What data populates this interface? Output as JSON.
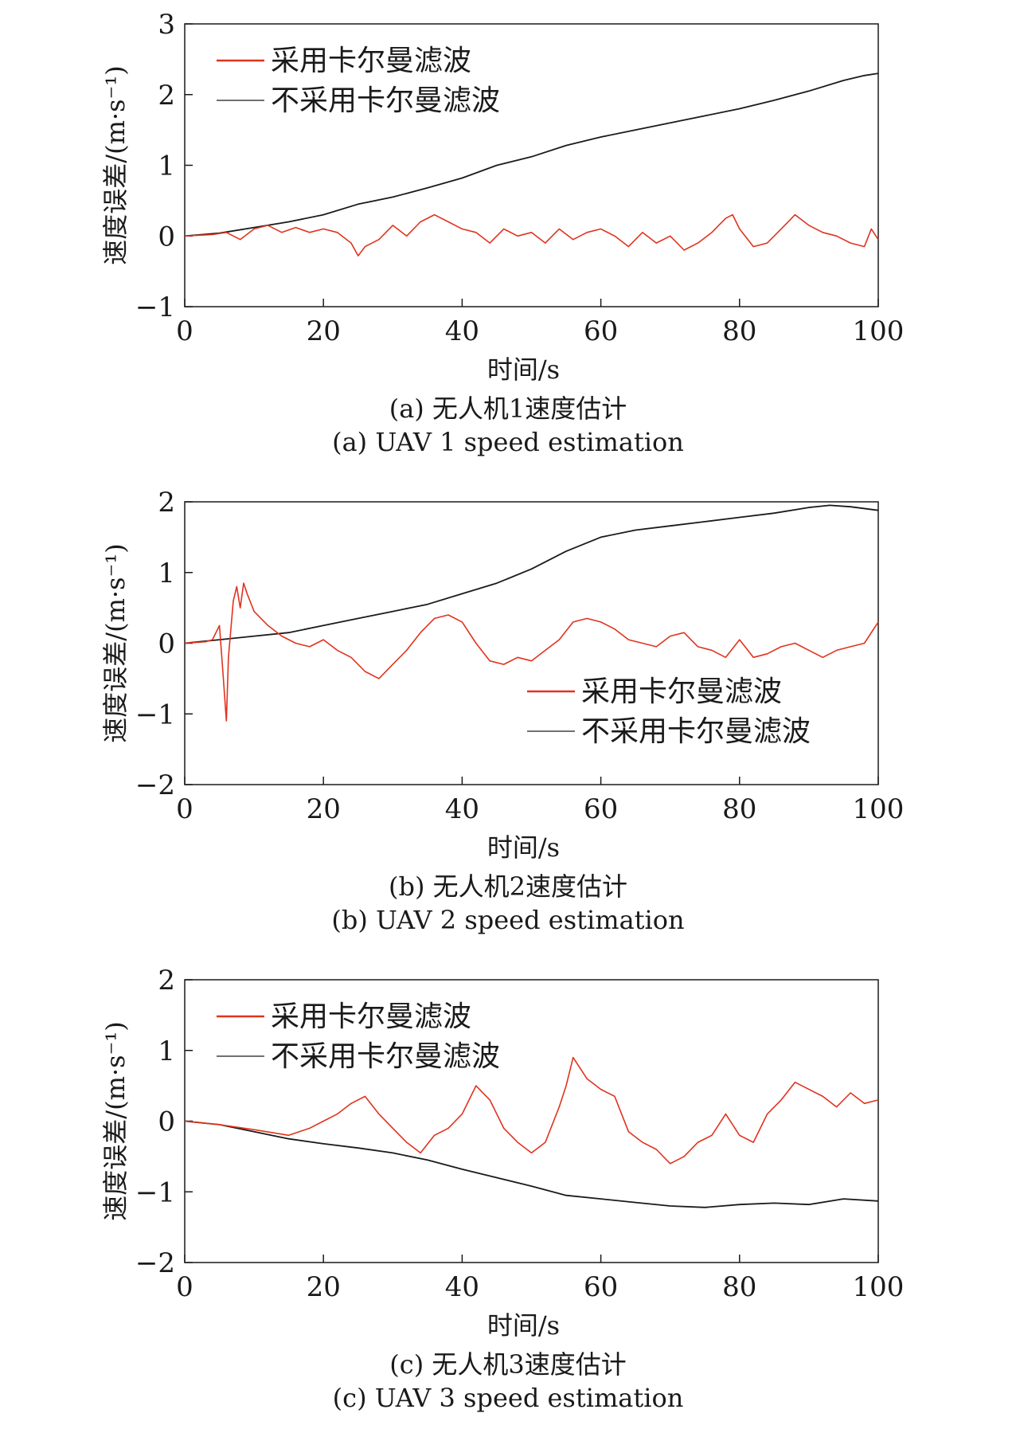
{
  "chart_data": [
    {
      "type": "line",
      "xlabel": "时间/s",
      "ylabel": "速度误差/(m·s⁻¹)",
      "xlim": [
        0,
        100
      ],
      "ylim": [
        -1,
        3
      ],
      "xticks": [
        "0",
        "20",
        "40",
        "60",
        "80",
        "100"
      ],
      "yticks": [
        "−1",
        "0",
        "1",
        "2",
        "3"
      ],
      "legend_position": "top-left",
      "caption_cn": "(a) 无人机1速度估计",
      "caption_en": "(a) UAV 1 speed estimation",
      "series": [
        {
          "name": "采用卡尔曼滤波",
          "color": "#e0331e",
          "x": [
            0,
            4,
            6,
            8,
            10,
            12,
            14,
            16,
            18,
            20,
            22,
            24,
            25,
            26,
            28,
            30,
            32,
            34,
            36,
            38,
            40,
            42,
            44,
            46,
            48,
            50,
            52,
            54,
            56,
            58,
            60,
            62,
            64,
            66,
            68,
            70,
            72,
            74,
            76,
            78,
            79,
            80,
            82,
            84,
            86,
            88,
            90,
            92,
            94,
            96,
            98,
            99,
            100
          ],
          "y": [
            0,
            0.02,
            0.05,
            -0.05,
            0.1,
            0.15,
            0.05,
            0.12,
            0.05,
            0.1,
            0.05,
            -0.1,
            -0.28,
            -0.15,
            -0.05,
            0.15,
            0.0,
            0.2,
            0.3,
            0.2,
            0.1,
            0.05,
            -0.1,
            0.1,
            0.0,
            0.05,
            -0.1,
            0.1,
            -0.05,
            0.05,
            0.1,
            0.0,
            -0.15,
            0.05,
            -0.1,
            0.0,
            -0.2,
            -0.1,
            0.05,
            0.25,
            0.3,
            0.1,
            -0.15,
            -0.1,
            0.1,
            0.3,
            0.15,
            0.05,
            0.0,
            -0.1,
            -0.15,
            0.1,
            -0.05
          ]
        },
        {
          "name": "不采用卡尔曼滤波",
          "color": "#1a1a1a",
          "x": [
            0,
            5,
            10,
            15,
            20,
            25,
            30,
            35,
            40,
            45,
            50,
            55,
            60,
            65,
            70,
            75,
            80,
            85,
            90,
            95,
            98,
            100
          ],
          "y": [
            0,
            0.04,
            0.12,
            0.2,
            0.3,
            0.45,
            0.55,
            0.68,
            0.82,
            1.0,
            1.12,
            1.28,
            1.4,
            1.5,
            1.6,
            1.7,
            1.8,
            1.92,
            2.05,
            2.2,
            2.27,
            2.3
          ]
        }
      ]
    },
    {
      "type": "line",
      "xlabel": "时间/s",
      "ylabel": "速度误差/(m·s⁻¹)",
      "xlim": [
        0,
        100
      ],
      "ylim": [
        -2,
        2
      ],
      "xticks": [
        "0",
        "20",
        "40",
        "60",
        "80",
        "100"
      ],
      "yticks": [
        "−2",
        "−1",
        "0",
        "1",
        "2"
      ],
      "legend_position": "bottom-right",
      "caption_cn": "(b) 无人机2速度估计",
      "caption_en": "(b) UAV 2 speed estimation",
      "series": [
        {
          "name": "采用卡尔曼滤波",
          "color": "#e0331e",
          "x": [
            0,
            3,
            4,
            5,
            5.5,
            6,
            6.3,
            7,
            7.5,
            8,
            8.5,
            9,
            10,
            11,
            12,
            14,
            16,
            18,
            20,
            22,
            24,
            26,
            28,
            30,
            32,
            34,
            36,
            38,
            40,
            42,
            44,
            46,
            48,
            50,
            52,
            54,
            56,
            58,
            60,
            62,
            64,
            66,
            68,
            70,
            72,
            74,
            76,
            78,
            80,
            82,
            84,
            86,
            88,
            90,
            92,
            94,
            96,
            98,
            100
          ],
          "y": [
            0,
            0.02,
            0.05,
            0.25,
            -0.4,
            -1.1,
            -0.2,
            0.6,
            0.8,
            0.5,
            0.85,
            0.7,
            0.45,
            0.35,
            0.25,
            0.1,
            0.0,
            -0.05,
            0.05,
            -0.1,
            -0.2,
            -0.4,
            -0.5,
            -0.3,
            -0.1,
            0.15,
            0.35,
            0.4,
            0.3,
            0.0,
            -0.25,
            -0.3,
            -0.2,
            -0.25,
            -0.1,
            0.05,
            0.3,
            0.35,
            0.3,
            0.2,
            0.05,
            0.0,
            -0.05,
            0.1,
            0.15,
            -0.05,
            -0.1,
            -0.2,
            0.05,
            -0.2,
            -0.15,
            -0.05,
            0.0,
            -0.1,
            -0.2,
            -0.1,
            -0.05,
            0.0,
            0.3
          ]
        },
        {
          "name": "不采用卡尔曼滤波",
          "color": "#1a1a1a",
          "x": [
            0,
            5,
            10,
            15,
            20,
            25,
            30,
            35,
            40,
            45,
            50,
            55,
            60,
            65,
            70,
            75,
            80,
            85,
            90,
            93,
            96,
            100
          ],
          "y": [
            0,
            0.05,
            0.1,
            0.15,
            0.25,
            0.35,
            0.45,
            0.55,
            0.7,
            0.85,
            1.05,
            1.3,
            1.5,
            1.6,
            1.66,
            1.72,
            1.78,
            1.84,
            1.92,
            1.95,
            1.93,
            1.88
          ]
        }
      ]
    },
    {
      "type": "line",
      "xlabel": "时间/s",
      "ylabel": "速度误差/(m·s⁻¹)",
      "xlim": [
        0,
        100
      ],
      "ylim": [
        -2,
        2
      ],
      "xticks": [
        "0",
        "20",
        "40",
        "60",
        "80",
        "100"
      ],
      "yticks": [
        "−2",
        "−1",
        "0",
        "1",
        "2"
      ],
      "legend_position": "top-left",
      "caption_cn": "(c) 无人机3速度估计",
      "caption_en": "(c) UAV 3 speed estimation",
      "series": [
        {
          "name": "采用卡尔曼滤波",
          "color": "#e0331e",
          "x": [
            0,
            5,
            10,
            15,
            18,
            20,
            22,
            24,
            26,
            28,
            30,
            32,
            34,
            36,
            38,
            40,
            42,
            44,
            46,
            48,
            50,
            52,
            54,
            55,
            56,
            58,
            60,
            62,
            64,
            66,
            68,
            70,
            72,
            74,
            76,
            78,
            80,
            82,
            84,
            86,
            88,
            90,
            92,
            94,
            96,
            98,
            100
          ],
          "y": [
            0,
            -0.05,
            -0.12,
            -0.2,
            -0.1,
            0.0,
            0.1,
            0.25,
            0.35,
            0.1,
            -0.1,
            -0.3,
            -0.45,
            -0.2,
            -0.1,
            0.1,
            0.5,
            0.3,
            -0.1,
            -0.3,
            -0.45,
            -0.3,
            0.2,
            0.5,
            0.9,
            0.6,
            0.45,
            0.35,
            -0.15,
            -0.3,
            -0.4,
            -0.6,
            -0.5,
            -0.3,
            -0.2,
            0.1,
            -0.2,
            -0.3,
            0.1,
            0.3,
            0.55,
            0.45,
            0.35,
            0.2,
            0.4,
            0.25,
            0.3
          ]
        },
        {
          "name": "不采用卡尔曼滤波",
          "color": "#1a1a1a",
          "x": [
            0,
            5,
            10,
            15,
            20,
            25,
            30,
            35,
            40,
            45,
            50,
            55,
            60,
            65,
            70,
            75,
            80,
            85,
            90,
            95,
            100
          ],
          "y": [
            0,
            -0.05,
            -0.15,
            -0.25,
            -0.32,
            -0.38,
            -0.45,
            -0.55,
            -0.68,
            -0.8,
            -0.92,
            -1.05,
            -1.1,
            -1.15,
            -1.2,
            -1.22,
            -1.18,
            -1.16,
            -1.18,
            -1.1,
            -1.13
          ]
        }
      ]
    }
  ]
}
